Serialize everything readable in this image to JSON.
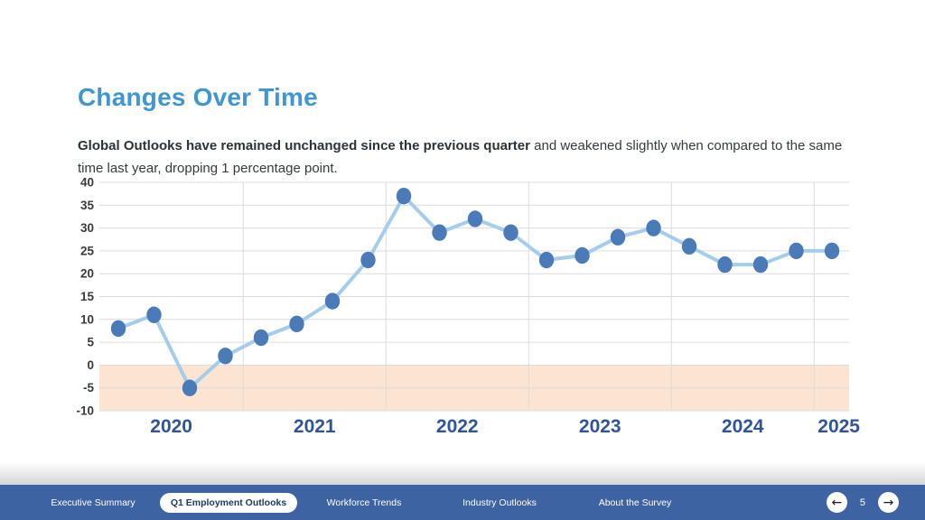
{
  "slide": {
    "title": "Changes Over Time",
    "subtitle_bold": "Global Outlooks have remained unchanged since the previous quarter",
    "subtitle_regular": " and weakened slightly when compared to the same time last year, dropping 1 percentage point."
  },
  "chart_data": {
    "type": "line",
    "x": [
      "2020 Q1",
      "2020 Q2",
      "2020 Q3",
      "2020 Q4",
      "2021 Q1",
      "2021 Q2",
      "2021 Q3",
      "2021 Q4",
      "2022 Q1",
      "2022 Q2",
      "2022 Q3",
      "2022 Q4",
      "2023 Q1",
      "2023 Q2",
      "2023 Q3",
      "2023 Q4",
      "2024 Q1",
      "2024 Q2",
      "2024 Q3",
      "2024 Q4",
      "2025 Q1"
    ],
    "values": [
      8,
      11,
      -5,
      2,
      6,
      9,
      14,
      23,
      37,
      29,
      32,
      29,
      23,
      24,
      28,
      30,
      26,
      22,
      22,
      25,
      25
    ],
    "year_labels": [
      "2020",
      "2021",
      "2022",
      "2023",
      "2024",
      "2025"
    ],
    "yticks": [
      40,
      35,
      30,
      25,
      20,
      15,
      10,
      5,
      0,
      -5,
      -10
    ],
    "ylim": [
      -10,
      40
    ],
    "grid": true,
    "legend": "none",
    "negative_band": {
      "from": -10,
      "to": 0,
      "color": "#fce4d2"
    },
    "line_color": "#a5cdeb",
    "marker_color": "#4a7ab8",
    "gridline_color": "#dcdcdc",
    "year_label_color": "#2f5597",
    "tick_label_color": "#3a3a3a"
  },
  "footer": {
    "bar_color": "#3e63a3",
    "items": [
      {
        "label": "Executive Summary",
        "active": false
      },
      {
        "label": "Q1 Employment Outlooks",
        "active": true
      },
      {
        "label": "Workforce Trends",
        "active": false
      },
      {
        "label": "Industry Outlooks",
        "active": false
      },
      {
        "label": "About the Survey",
        "active": false
      }
    ],
    "prev_icon": "←",
    "next_icon": "→",
    "page_number": "5"
  }
}
